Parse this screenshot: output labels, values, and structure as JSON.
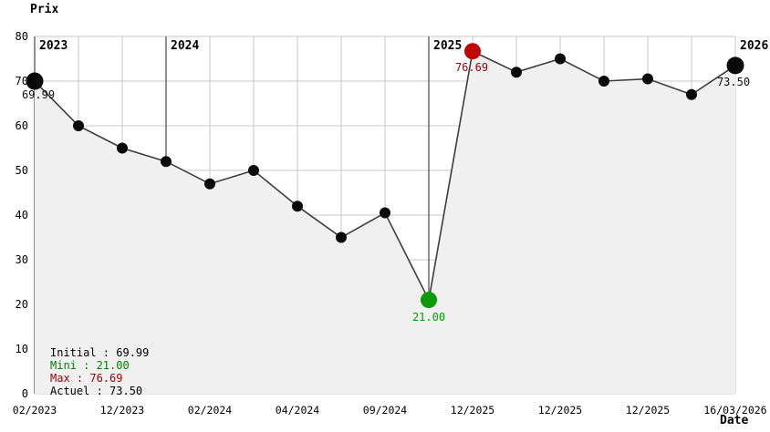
{
  "chart_data": {
    "type": "area",
    "title": "Prix",
    "xlabel": "Date",
    "ylabel": "Prix",
    "ylim": [
      0,
      80
    ],
    "y_ticks": [
      0,
      10,
      20,
      30,
      40,
      50,
      60,
      70,
      80
    ],
    "grid": true,
    "x_ticks": [
      {
        "index": 0,
        "label": "02/2023"
      },
      {
        "index": 2,
        "label": "12/2023"
      },
      {
        "index": 4,
        "label": "02/2024"
      },
      {
        "index": 6,
        "label": "04/2024"
      },
      {
        "index": 8,
        "label": "09/2024"
      },
      {
        "index": 10,
        "label": "12/2025"
      },
      {
        "index": 12,
        "label": "12/2025"
      },
      {
        "index": 14,
        "label": "12/2025"
      },
      {
        "index": 16,
        "label": "16/03/2026"
      }
    ],
    "year_markers": [
      {
        "index": 0,
        "label": "2023",
        "dark_line": true
      },
      {
        "index": 3,
        "label": "2024",
        "dark_line": true
      },
      {
        "index": 9,
        "label": "2025",
        "dark_line": true
      },
      {
        "index": 16,
        "label": "2026",
        "dark_line": false
      }
    ],
    "points": [
      {
        "value": 69.99,
        "role": "initial",
        "label": "69.99"
      },
      {
        "value": 60
      },
      {
        "value": 55
      },
      {
        "value": 52
      },
      {
        "value": 47
      },
      {
        "value": 50
      },
      {
        "value": 42
      },
      {
        "value": 35
      },
      {
        "value": 40.5
      },
      {
        "value": 21.0,
        "role": "min",
        "label": "21.00"
      },
      {
        "value": 76.69,
        "role": "max",
        "label": "76.69"
      },
      {
        "value": 72
      },
      {
        "value": 75
      },
      {
        "value": 70
      },
      {
        "value": 70.5
      },
      {
        "value": 67
      },
      {
        "value": 73.5,
        "role": "current",
        "label": "73.50"
      }
    ],
    "colors": {
      "line": "#3d3d3d",
      "dot": "#0a0a0a",
      "dot_min": "#0a9a0a",
      "dot_max": "#c00505",
      "text_min": "#00a000",
      "text_max": "#a00000",
      "text_default": "#111111",
      "fill": "#f0f0f0",
      "grid": "#c8c8c8",
      "year_grid": "#606060"
    }
  },
  "stats": {
    "separator": " : ",
    "items": [
      {
        "label": "Initial",
        "value": "69.99",
        "color": "#000000"
      },
      {
        "label": "Mini",
        "value": "21.00",
        "color": "#008000"
      },
      {
        "label": "Max",
        "value": "76.69",
        "color": "#a00000"
      },
      {
        "label": "Actuel",
        "value": "73.50",
        "color": "#000000"
      }
    ]
  }
}
